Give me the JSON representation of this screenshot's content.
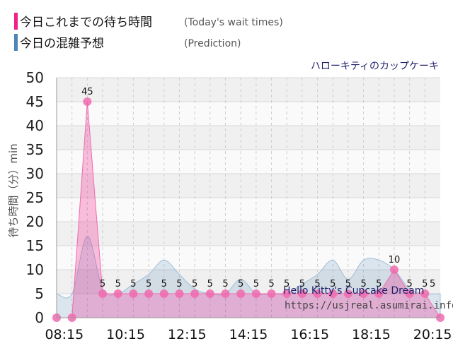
{
  "legend": {
    "actual_label": "今日これまでの待ち時間",
    "actual_sub": "(Today's wait times)",
    "actual_color": "#f0208c",
    "prediction_label": "今日の混雑予想",
    "prediction_sub": "(Prediction)",
    "prediction_color": "#4a86b8"
  },
  "chart_data": {
    "type": "area",
    "title": "ハローキティのカップケーキ",
    "ylabel": "待ち時間（分）min",
    "ylim": [
      0,
      50
    ],
    "yticks": [
      "0",
      "5",
      "10",
      "15",
      "20",
      "25",
      "30",
      "35",
      "40",
      "45",
      "50"
    ],
    "xrange": [
      "08:00",
      "20:30"
    ],
    "xticks": [
      "08:15",
      "10:15",
      "12:15",
      "14:15",
      "16:15",
      "18:15",
      "20:15"
    ],
    "grid": true,
    "series": [
      {
        "points": [
          [
            "08:00",
            0
          ],
          [
            "08:30",
            0
          ],
          [
            "09:00",
            45
          ],
          [
            "09:30",
            5
          ],
          [
            "10:00",
            5
          ],
          [
            "10:30",
            5
          ],
          [
            "11:00",
            5
          ],
          [
            "11:30",
            5
          ],
          [
            "12:00",
            5
          ],
          [
            "12:30",
            5
          ],
          [
            "13:00",
            5
          ],
          [
            "13:30",
            5
          ],
          [
            "14:00",
            5
          ],
          [
            "14:30",
            5
          ],
          [
            "15:00",
            5
          ],
          [
            "15:30",
            5
          ],
          [
            "16:00",
            5
          ],
          [
            "16:30",
            5
          ],
          [
            "17:00",
            5
          ],
          [
            "17:30",
            5
          ],
          [
            "18:00",
            5
          ],
          [
            "18:30",
            5
          ],
          [
            "19:00",
            10
          ],
          [
            "19:30",
            5
          ],
          [
            "20:00",
            5
          ],
          [
            "20:30",
            0
          ]
        ],
        "data_labels": [
          [
            "09:00",
            "45"
          ],
          [
            "09:30",
            "5"
          ],
          [
            "10:00",
            "5"
          ],
          [
            "10:30",
            "5"
          ],
          [
            "11:00",
            "5"
          ],
          [
            "11:30",
            "5"
          ],
          [
            "12:00",
            "5"
          ],
          [
            "12:30",
            "5"
          ],
          [
            "13:00",
            "5"
          ],
          [
            "13:30",
            "5"
          ],
          [
            "14:00",
            "5"
          ],
          [
            "14:30",
            "5"
          ],
          [
            "15:00",
            "5"
          ],
          [
            "15:30",
            "5"
          ],
          [
            "16:00",
            "5"
          ],
          [
            "16:30",
            "5"
          ],
          [
            "17:00",
            "5"
          ],
          [
            "17:30",
            "5"
          ],
          [
            "18:00",
            "5"
          ],
          [
            "18:30",
            "5"
          ],
          [
            "19:00",
            "10"
          ],
          [
            "19:30",
            "5"
          ],
          [
            "20:00",
            "5"
          ],
          [
            "20:15",
            "5"
          ]
        ]
      },
      {
        "points": [
          [
            "08:00",
            5
          ],
          [
            "08:30",
            5
          ],
          [
            "09:00",
            17
          ],
          [
            "09:30",
            6
          ],
          [
            "10:00",
            5
          ],
          [
            "10:30",
            7
          ],
          [
            "11:00",
            9
          ],
          [
            "11:30",
            12
          ],
          [
            "12:00",
            9
          ],
          [
            "12:30",
            6
          ],
          [
            "13:00",
            5
          ],
          [
            "13:30",
            5
          ],
          [
            "14:00",
            8
          ],
          [
            "14:30",
            5
          ],
          [
            "15:00",
            5
          ],
          [
            "15:30",
            5
          ],
          [
            "16:00",
            7
          ],
          [
            "16:30",
            9
          ],
          [
            "17:00",
            12
          ],
          [
            "17:30",
            8
          ],
          [
            "18:00",
            12
          ],
          [
            "18:30",
            12
          ],
          [
            "19:00",
            10
          ],
          [
            "19:30",
            6
          ],
          [
            "20:00",
            5
          ],
          [
            "20:30",
            5
          ]
        ]
      }
    ]
  },
  "watermark": {
    "title": "Hello Kitty's Cupcake Dream",
    "url": "https://usjreal.asumirai.info"
  }
}
